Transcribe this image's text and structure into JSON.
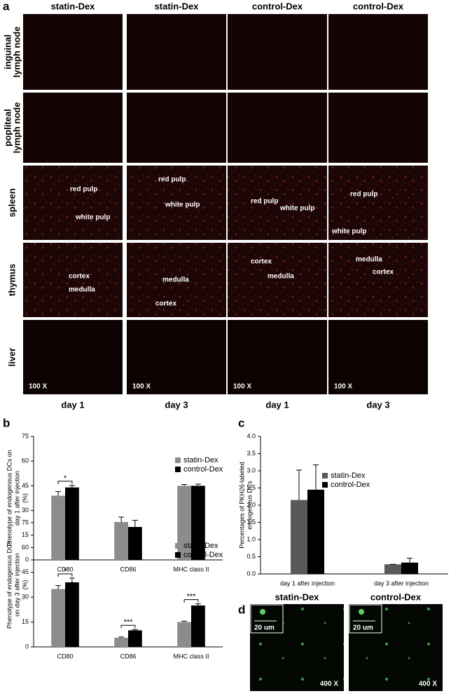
{
  "panel_a": {
    "label": "a",
    "columns": [
      "statin-Dex",
      "statin-Dex",
      "control-Dex",
      "control-Dex"
    ],
    "rows": [
      [
        "inguinal",
        "lymph node"
      ],
      [
        "popliteal",
        "lymph node"
      ],
      [
        "spleen"
      ],
      [
        "thymus"
      ],
      [
        "liver"
      ]
    ],
    "annotations": {
      "spleen": [
        [
          "red pulp",
          "white pulp"
        ],
        [
          "red pulp",
          "white pulp"
        ],
        [
          "red pulp",
          "white pulp"
        ],
        [
          "red pulp",
          "white pulp"
        ]
      ],
      "thymus": [
        [
          "cortex",
          "medulla"
        ],
        [
          "medulla",
          "cortex"
        ],
        [
          "cortex",
          "medulla"
        ],
        [
          "medulla",
          "cortex"
        ]
      ]
    },
    "magnification": "100 X",
    "days": [
      "day 1",
      "day 3",
      "day 1",
      "day 3"
    ]
  },
  "chart_data": [
    {
      "type": "bar",
      "panel": "b",
      "y_label": [
        "Phenotype of endogenous DCs on",
        "day 1 after injection",
        "(%)"
      ],
      "categories": [
        "CD80",
        "CD86",
        "MHC class II"
      ],
      "series": [
        {
          "name": "statin-Dex",
          "color": "#8c8c8c",
          "values": [
            39,
            23,
            45
          ],
          "errors": [
            2.5,
            3,
            0.8
          ]
        },
        {
          "name": "control-Dex",
          "color": "#000000",
          "values": [
            44,
            20,
            45
          ],
          "errors": [
            1.2,
            4,
            1
          ]
        }
      ],
      "significance": [
        "*",
        null,
        null
      ],
      "ylim": [
        0,
        75
      ],
      "yticks": [
        0,
        15,
        30,
        45,
        60,
        75
      ]
    },
    {
      "type": "bar",
      "y_label": [
        "Phenotype of endogenous DCs",
        "on day 3 after injection",
        "(%)"
      ],
      "categories": [
        "CD80",
        "CD86",
        "MHC class II"
      ],
      "series": [
        {
          "name": "statin-Dex",
          "color": "#8c8c8c",
          "values": [
            35,
            5.5,
            15
          ],
          "errors": [
            2,
            0.5,
            0.5
          ]
        },
        {
          "name": "control-Dex",
          "color": "#000000",
          "values": [
            39,
            10,
            25
          ],
          "errors": [
            2.5,
            0.5,
            1
          ]
        }
      ],
      "significance": [
        "*",
        "***",
        "***"
      ],
      "ylim": [
        0,
        75
      ],
      "yticks": [
        0,
        15,
        30,
        45,
        60,
        75
      ]
    },
    {
      "type": "bar",
      "panel": "c",
      "y_label": [
        "Percentages of PKH26-labeled",
        "endogenous DCs"
      ],
      "categories": [
        "day 1 after injection",
        "day 3 after injection"
      ],
      "series": [
        {
          "name": "statin-Dex",
          "color": "#595959",
          "values": [
            2.15,
            0.28
          ],
          "errors": [
            0.87,
            0
          ]
        },
        {
          "name": "control-Dex",
          "color": "#000000",
          "values": [
            2.45,
            0.33
          ],
          "errors": [
            0.72,
            0.13
          ]
        }
      ],
      "ylim": [
        0,
        4
      ],
      "yticks": [
        {
          "value": 0,
          "label": "0.0"
        },
        0.5,
        {
          "value": 1,
          "label": "1.0"
        },
        1.5,
        {
          "value": 2,
          "label": "2.0"
        },
        2.5,
        {
          "value": 3,
          "label": "3.0"
        },
        3.5,
        {
          "value": 4,
          "label": "4.0"
        }
      ]
    }
  ],
  "panel_d": {
    "label": "d",
    "images": [
      "statin-Dex",
      "control-Dex"
    ],
    "scale_bar": "20 um",
    "magnification": "400 X"
  }
}
